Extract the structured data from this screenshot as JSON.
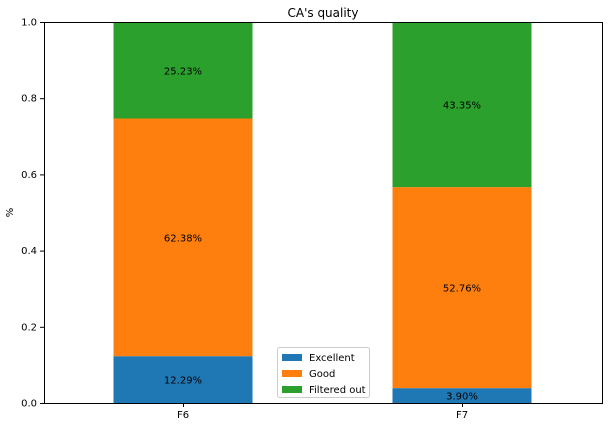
{
  "chart_data": {
    "type": "bar",
    "stacked": true,
    "title": "CA's quality",
    "xlabel": "",
    "ylabel": "%",
    "ylim": [
      0,
      1.0
    ],
    "yticks": [
      "0.0",
      "0.2",
      "0.4",
      "0.6",
      "0.8",
      "1.0"
    ],
    "ytick_values": [
      0.0,
      0.2,
      0.4,
      0.6,
      0.8,
      1.0
    ],
    "categories": [
      "F6",
      "F7"
    ],
    "series": [
      {
        "name": "Excellent",
        "color": "#1f77b4",
        "values": [
          0.1229,
          0.039
        ],
        "labels": [
          "12.29%",
          "3.90%"
        ]
      },
      {
        "name": "Good",
        "color": "#ff7f0e",
        "values": [
          0.6238,
          0.5276
        ],
        "labels": [
          "62.38%",
          "52.76%"
        ]
      },
      {
        "name": "Filtered out",
        "color": "#2ca02c",
        "values": [
          0.2523,
          0.4335
        ],
        "labels": [
          "25.23%",
          "43.35%"
        ]
      }
    ],
    "legend_position": "lower-center",
    "grid": false
  }
}
